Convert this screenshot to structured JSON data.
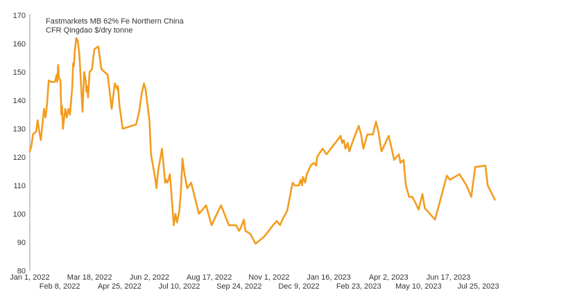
{
  "chart_data": {
    "type": "line",
    "title_lines": [
      "Fastmarkets MB 62% Fe Northern China",
      "CFR Qingdao $/dry tonne"
    ],
    "xlabel": "",
    "ylabel": "",
    "ylim": [
      80,
      170
    ],
    "yticks": [
      80,
      90,
      100,
      110,
      120,
      130,
      140,
      150,
      160,
      170
    ],
    "xlim": [
      "2022-01-01",
      "2023-08-26"
    ],
    "xtick_labels": [
      {
        "date": "2022-01-01",
        "label": "Jan 1, 2022",
        "row": 1
      },
      {
        "date": "2022-02-08",
        "label": "Feb 8, 2022",
        "row": 2
      },
      {
        "date": "2022-03-18",
        "label": "Mar 18, 2022",
        "row": 1
      },
      {
        "date": "2022-04-25",
        "label": "Apr 25, 2022",
        "row": 2
      },
      {
        "date": "2022-06-02",
        "label": "Jun 2, 2022",
        "row": 1
      },
      {
        "date": "2022-07-10",
        "label": "Jul 10, 2022",
        "row": 2
      },
      {
        "date": "2022-08-17",
        "label": "Aug 17, 2022",
        "row": 1
      },
      {
        "date": "2022-09-24",
        "label": "Sep 24, 2022",
        "row": 2
      },
      {
        "date": "2022-11-01",
        "label": "Nov 1, 2022",
        "row": 1
      },
      {
        "date": "2022-12-09",
        "label": "Dec 9, 2022",
        "row": 2
      },
      {
        "date": "2023-01-16",
        "label": "Jan 16, 2023",
        "row": 1
      },
      {
        "date": "2023-02-23",
        "label": "Feb 23, 2023",
        "row": 2
      },
      {
        "date": "2023-04-02",
        "label": "Apr 2, 2023",
        "row": 1
      },
      {
        "date": "2023-05-10",
        "label": "May 10, 2023",
        "row": 2
      },
      {
        "date": "2023-06-17",
        "label": "Jun 17, 2023",
        "row": 1
      },
      {
        "date": "2023-07-25",
        "label": "Jul 25, 2023",
        "row": 2
      }
    ],
    "grid": false,
    "legend": "none",
    "colors": {
      "line": "#F39C1F",
      "axis": "#999999",
      "text": "#333333"
    },
    "series": [
      {
        "values": [
          {
            "x": "2022-01-01",
            "y": 122
          },
          {
            "x": "2022-01-03",
            "y": 124
          },
          {
            "x": "2022-01-05",
            "y": 128
          },
          {
            "x": "2022-01-09",
            "y": 129
          },
          {
            "x": "2022-01-11",
            "y": 133
          },
          {
            "x": "2022-01-13",
            "y": 129
          },
          {
            "x": "2022-01-15",
            "y": 126
          },
          {
            "x": "2022-01-19",
            "y": 137
          },
          {
            "x": "2022-01-21",
            "y": 134
          },
          {
            "x": "2022-01-23",
            "y": 139
          },
          {
            "x": "2022-01-25",
            "y": 147
          },
          {
            "x": "2022-01-28",
            "y": 146.5
          },
          {
            "x": "2022-02-02",
            "y": 146.5
          },
          {
            "x": "2022-02-04",
            "y": 149
          },
          {
            "x": "2022-02-05",
            "y": 146.5
          },
          {
            "x": "2022-02-06",
            "y": 152.5
          },
          {
            "x": "2022-02-07",
            "y": 148
          },
          {
            "x": "2022-02-09",
            "y": 147
          },
          {
            "x": "2022-02-10",
            "y": 135
          },
          {
            "x": "2022-02-11",
            "y": 138
          },
          {
            "x": "2022-02-12",
            "y": 130
          },
          {
            "x": "2022-02-15",
            "y": 137
          },
          {
            "x": "2022-02-17",
            "y": 134
          },
          {
            "x": "2022-02-19",
            "y": 137
          },
          {
            "x": "2022-02-21",
            "y": 135
          },
          {
            "x": "2022-02-24",
            "y": 145
          },
          {
            "x": "2022-02-25",
            "y": 153
          },
          {
            "x": "2022-02-26",
            "y": 152
          },
          {
            "x": "2022-02-27",
            "y": 157
          },
          {
            "x": "2022-03-01",
            "y": 162
          },
          {
            "x": "2022-03-03",
            "y": 161
          },
          {
            "x": "2022-03-05",
            "y": 156
          },
          {
            "x": "2022-03-07",
            "y": 146
          },
          {
            "x": "2022-03-09",
            "y": 136
          },
          {
            "x": "2022-03-11",
            "y": 150
          },
          {
            "x": "2022-03-13",
            "y": 147
          },
          {
            "x": "2022-03-14",
            "y": 143
          },
          {
            "x": "2022-03-15",
            "y": 145
          },
          {
            "x": "2022-03-16",
            "y": 141
          },
          {
            "x": "2022-03-18",
            "y": 150
          },
          {
            "x": "2022-03-21",
            "y": 151
          },
          {
            "x": "2022-03-24",
            "y": 158
          },
          {
            "x": "2022-03-29",
            "y": 159
          },
          {
            "x": "2022-04-02",
            "y": 151
          },
          {
            "x": "2022-04-10",
            "y": 149
          },
          {
            "x": "2022-04-15",
            "y": 137
          },
          {
            "x": "2022-04-19",
            "y": 146
          },
          {
            "x": "2022-04-22",
            "y": 144
          },
          {
            "x": "2022-04-23",
            "y": 145
          },
          {
            "x": "2022-04-25",
            "y": 138
          },
          {
            "x": "2022-04-29",
            "y": 130
          },
          {
            "x": "2022-05-16",
            "y": 131.5
          },
          {
            "x": "2022-05-20",
            "y": 136
          },
          {
            "x": "2022-05-23",
            "y": 142
          },
          {
            "x": "2022-05-26",
            "y": 146
          },
          {
            "x": "2022-05-28",
            "y": 144
          },
          {
            "x": "2022-06-02",
            "y": 133
          },
          {
            "x": "2022-06-04",
            "y": 121
          },
          {
            "x": "2022-06-09",
            "y": 113
          },
          {
            "x": "2022-06-11",
            "y": 109
          },
          {
            "x": "2022-06-13",
            "y": 115
          },
          {
            "x": "2022-06-18",
            "y": 123
          },
          {
            "x": "2022-06-22",
            "y": 111
          },
          {
            "x": "2022-06-23",
            "y": 112
          },
          {
            "x": "2022-06-25",
            "y": 111
          },
          {
            "x": "2022-06-28",
            "y": 114
          },
          {
            "x": "2022-07-03",
            "y": 96
          },
          {
            "x": "2022-07-05",
            "y": 100
          },
          {
            "x": "2022-07-07",
            "y": 97
          },
          {
            "x": "2022-07-10",
            "y": 101
          },
          {
            "x": "2022-07-12",
            "y": 108
          },
          {
            "x": "2022-07-14",
            "y": 119.5
          },
          {
            "x": "2022-07-16",
            "y": 115
          },
          {
            "x": "2022-07-20",
            "y": 109
          },
          {
            "x": "2022-07-25",
            "y": 111
          },
          {
            "x": "2022-08-04",
            "y": 100
          },
          {
            "x": "2022-08-13",
            "y": 103
          },
          {
            "x": "2022-08-17",
            "y": 99
          },
          {
            "x": "2022-08-20",
            "y": 96
          },
          {
            "x": "2022-08-25",
            "y": 99
          },
          {
            "x": "2022-09-01",
            "y": 103
          },
          {
            "x": "2022-09-11",
            "y": 96
          },
          {
            "x": "2022-09-20",
            "y": 96
          },
          {
            "x": "2022-09-24",
            "y": 94
          },
          {
            "x": "2022-09-26",
            "y": 95
          },
          {
            "x": "2022-09-30",
            "y": 98
          },
          {
            "x": "2022-10-02",
            "y": 94
          },
          {
            "x": "2022-10-08",
            "y": 93
          },
          {
            "x": "2022-10-15",
            "y": 89.5
          },
          {
            "x": "2022-10-26",
            "y": 92
          },
          {
            "x": "2022-11-06",
            "y": 96
          },
          {
            "x": "2022-11-11",
            "y": 97.5
          },
          {
            "x": "2022-11-15",
            "y": 96
          },
          {
            "x": "2022-11-18",
            "y": 98
          },
          {
            "x": "2022-11-24",
            "y": 101
          },
          {
            "x": "2022-12-01",
            "y": 111
          },
          {
            "x": "2022-12-04",
            "y": 110
          },
          {
            "x": "2022-12-09",
            "y": 110
          },
          {
            "x": "2022-12-11",
            "y": 112
          },
          {
            "x": "2022-12-13",
            "y": 110
          },
          {
            "x": "2022-12-14",
            "y": 113
          },
          {
            "x": "2022-12-17",
            "y": 111
          },
          {
            "x": "2022-12-19",
            "y": 114
          },
          {
            "x": "2022-12-24",
            "y": 117
          },
          {
            "x": "2022-12-28",
            "y": 118
          },
          {
            "x": "2022-12-31",
            "y": 117
          },
          {
            "x": "2023-01-01",
            "y": 120
          },
          {
            "x": "2023-01-08",
            "y": 123
          },
          {
            "x": "2023-01-13",
            "y": 121
          },
          {
            "x": "2023-01-16",
            "y": 122
          },
          {
            "x": "2023-01-31",
            "y": 127.5
          },
          {
            "x": "2023-02-02",
            "y": 125
          },
          {
            "x": "2023-02-04",
            "y": 126
          },
          {
            "x": "2023-02-06",
            "y": 123
          },
          {
            "x": "2023-02-09",
            "y": 125
          },
          {
            "x": "2023-02-11",
            "y": 122
          },
          {
            "x": "2023-02-16",
            "y": 126
          },
          {
            "x": "2023-02-23",
            "y": 131
          },
          {
            "x": "2023-02-26",
            "y": 128
          },
          {
            "x": "2023-03-01",
            "y": 123
          },
          {
            "x": "2023-03-06",
            "y": 128
          },
          {
            "x": "2023-03-13",
            "y": 128
          },
          {
            "x": "2023-03-17",
            "y": 132.5
          },
          {
            "x": "2023-03-20",
            "y": 129
          },
          {
            "x": "2023-03-24",
            "y": 122
          },
          {
            "x": "2023-04-02",
            "y": 127.5
          },
          {
            "x": "2023-04-05",
            "y": 124
          },
          {
            "x": "2023-04-09",
            "y": 119
          },
          {
            "x": "2023-04-15",
            "y": 121
          },
          {
            "x": "2023-04-17",
            "y": 118
          },
          {
            "x": "2023-04-21",
            "y": 119
          },
          {
            "x": "2023-04-24",
            "y": 110
          },
          {
            "x": "2023-04-28",
            "y": 106
          },
          {
            "x": "2023-05-02",
            "y": 106
          },
          {
            "x": "2023-05-06",
            "y": 104
          },
          {
            "x": "2023-05-10",
            "y": 101.5
          },
          {
            "x": "2023-05-15",
            "y": 107
          },
          {
            "x": "2023-05-18",
            "y": 102
          },
          {
            "x": "2023-05-31",
            "y": 98
          },
          {
            "x": "2023-06-15",
            "y": 113.5
          },
          {
            "x": "2023-06-19",
            "y": 112
          },
          {
            "x": "2023-07-01",
            "y": 114
          },
          {
            "x": "2023-07-10",
            "y": 110
          },
          {
            "x": "2023-07-16",
            "y": 106
          },
          {
            "x": "2023-07-21",
            "y": 116.5
          },
          {
            "x": "2023-08-03",
            "y": 117
          },
          {
            "x": "2023-08-06",
            "y": 110
          },
          {
            "x": "2023-08-15",
            "y": 105
          }
        ]
      }
    ]
  }
}
